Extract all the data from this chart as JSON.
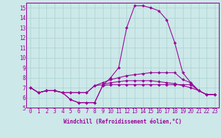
{
  "xlabel": "Windchill (Refroidissement éolien,°C)",
  "bg_color": "#cce8e8",
  "grid_color": "#aad0d0",
  "line_color": "#990099",
  "spine_color": "#990099",
  "xlim": [
    -0.5,
    23.5
  ],
  "ylim": [
    5,
    15.5
  ],
  "xticks": [
    0,
    1,
    2,
    3,
    4,
    5,
    6,
    7,
    8,
    9,
    10,
    11,
    12,
    13,
    14,
    15,
    16,
    17,
    18,
    19,
    20,
    21,
    22,
    23
  ],
  "yticks": [
    5,
    6,
    7,
    8,
    9,
    10,
    11,
    12,
    13,
    14,
    15
  ],
  "series": {
    "line1": [
      7.0,
      6.5,
      6.7,
      6.7,
      6.5,
      5.8,
      5.5,
      5.5,
      5.5,
      7.2,
      7.3,
      7.3,
      7.3,
      7.3,
      7.3,
      7.3,
      7.3,
      7.3,
      7.3,
      7.3,
      7.3,
      6.7,
      6.3,
      6.3
    ],
    "line2": [
      7.0,
      6.5,
      6.7,
      6.7,
      6.5,
      5.8,
      5.5,
      5.5,
      5.5,
      7.2,
      8.0,
      9.0,
      13.0,
      15.2,
      15.2,
      15.0,
      14.7,
      13.8,
      11.5,
      8.5,
      7.5,
      6.7,
      6.3,
      6.3
    ],
    "line3": [
      7.0,
      6.5,
      6.7,
      6.7,
      6.5,
      6.5,
      6.5,
      6.5,
      7.2,
      7.5,
      7.8,
      8.0,
      8.2,
      8.3,
      8.4,
      8.5,
      8.5,
      8.5,
      8.5,
      7.8,
      7.5,
      6.7,
      6.3,
      6.3
    ],
    "line4": [
      7.0,
      6.5,
      6.7,
      6.7,
      6.5,
      6.5,
      6.5,
      6.5,
      7.2,
      7.3,
      7.5,
      7.6,
      7.7,
      7.7,
      7.7,
      7.7,
      7.6,
      7.5,
      7.4,
      7.2,
      7.0,
      6.7,
      6.3,
      6.3
    ]
  },
  "tick_fontsize": 5.5,
  "xlabel_fontsize": 5.5,
  "marker": "D",
  "markersize": 2.0,
  "linewidth": 0.8
}
